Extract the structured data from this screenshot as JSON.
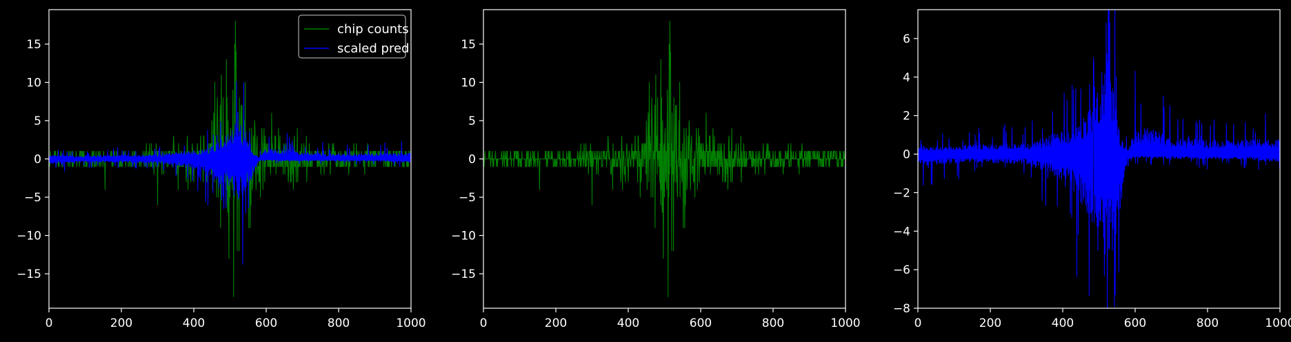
{
  "chart_data": [
    {
      "type": "line",
      "title": "",
      "xlabel": "",
      "ylabel": "",
      "xlim": [
        0,
        1000
      ],
      "ylim": [
        -19.5,
        19.5
      ],
      "xticks": [
        0,
        200,
        400,
        600,
        800,
        1000
      ],
      "yticks": [
        -15,
        -10,
        -5,
        0,
        5,
        10,
        15
      ],
      "grid": false,
      "legend": "top-right",
      "series": [
        {
          "name": "chip counts",
          "color": "#008000",
          "kind": "sparse-spikes",
          "envelope": [
            [
              0,
              1
            ],
            [
              100,
              1
            ],
            [
              200,
              1.5
            ],
            [
              320,
              3
            ],
            [
              380,
              4
            ],
            [
              430,
              6
            ],
            [
              470,
              11
            ],
            [
              490,
              13
            ],
            [
              515,
              18
            ],
            [
              530,
              12
            ],
            [
              560,
              11
            ],
            [
              580,
              7
            ],
            [
              600,
              6
            ],
            [
              640,
              5
            ],
            [
              700,
              4
            ],
            [
              800,
              2
            ],
            [
              900,
              2
            ],
            [
              1000,
              1
            ]
          ],
          "peaks": [
            [
              490,
              13
            ],
            [
              515,
              18
            ],
            [
              510,
              -18
            ],
            [
              300,
              -6
            ],
            [
              155,
              -4
            ]
          ]
        },
        {
          "name": "scaled pred",
          "color": "#0000ff",
          "kind": "two-sided-band",
          "upper": [
            [
              0,
              0.6
            ],
            [
              60,
              0.4
            ],
            [
              120,
              0.5
            ],
            [
              200,
              0.6
            ],
            [
              300,
              0.6
            ],
            [
              350,
              1.0
            ],
            [
              400,
              1.3
            ],
            [
              440,
              1.5
            ],
            [
              470,
              2.5
            ],
            [
              500,
              4.0
            ],
            [
              520,
              6.0
            ],
            [
              540,
              4.0
            ],
            [
              560,
              1.0
            ],
            [
              580,
              0.2
            ],
            [
              600,
              1.5
            ],
            [
              640,
              1.5
            ],
            [
              700,
              1.0
            ],
            [
              800,
              0.8
            ],
            [
              900,
              0.8
            ],
            [
              1000,
              0.9
            ]
          ],
          "lower": [
            [
              0,
              -0.7
            ],
            [
              60,
              -0.6
            ],
            [
              120,
              -0.5
            ],
            [
              200,
              -0.5
            ],
            [
              300,
              -0.6
            ],
            [
              350,
              -1.0
            ],
            [
              400,
              -1.5
            ],
            [
              440,
              -2.5
            ],
            [
              470,
              -3.5
            ],
            [
              500,
              -5.0
            ],
            [
              520,
              -6.5
            ],
            [
              540,
              -6.0
            ],
            [
              560,
              -3.0
            ],
            [
              580,
              -0.3
            ],
            [
              600,
              -0.2
            ],
            [
              700,
              -0.3
            ],
            [
              800,
              -0.3
            ],
            [
              900,
              -0.3
            ],
            [
              1000,
              -0.5
            ]
          ]
        }
      ],
      "legend_entries": [
        "chip counts",
        "scaled pred"
      ]
    },
    {
      "type": "line",
      "title": "",
      "xlabel": "",
      "ylabel": "",
      "xlim": [
        0,
        1000
      ],
      "ylim": [
        -19.5,
        19.5
      ],
      "xticks": [
        0,
        200,
        400,
        600,
        800,
        1000
      ],
      "yticks": [
        -15,
        -10,
        -5,
        0,
        5,
        10,
        15
      ],
      "grid": false,
      "series": [
        {
          "color": "#008000",
          "kind": "sparse-spikes",
          "envelope": [
            [
              0,
              1
            ],
            [
              100,
              1
            ],
            [
              200,
              1.5
            ],
            [
              320,
              3
            ],
            [
              380,
              4
            ],
            [
              430,
              6
            ],
            [
              470,
              11
            ],
            [
              490,
              13
            ],
            [
              515,
              18
            ],
            [
              530,
              12
            ],
            [
              560,
              11
            ],
            [
              580,
              7
            ],
            [
              600,
              6
            ],
            [
              640,
              5
            ],
            [
              700,
              4
            ],
            [
              800,
              2
            ],
            [
              900,
              2
            ],
            [
              1000,
              1
            ]
          ],
          "peaks": [
            [
              490,
              13
            ],
            [
              515,
              18
            ],
            [
              510,
              -18
            ],
            [
              300,
              -6
            ],
            [
              155,
              -4
            ]
          ]
        }
      ]
    },
    {
      "type": "line",
      "title": "",
      "xlabel": "",
      "ylabel": "",
      "xlim": [
        0,
        1000
      ],
      "ylim": [
        -8,
        7.5
      ],
      "xticks": [
        0,
        200,
        400,
        600,
        800,
        1000
      ],
      "yticks": [
        -8,
        -6,
        -4,
        -2,
        0,
        2,
        4,
        6
      ],
      "grid": false,
      "series": [
        {
          "color": "#0000ff",
          "kind": "two-sided-band",
          "upper": [
            [
              0,
              0.6
            ],
            [
              60,
              0.4
            ],
            [
              120,
              0.5
            ],
            [
              200,
              0.6
            ],
            [
              300,
              0.6
            ],
            [
              350,
              1.0
            ],
            [
              400,
              1.3
            ],
            [
              440,
              1.5
            ],
            [
              470,
              2.5
            ],
            [
              500,
              4.0
            ],
            [
              520,
              6.0
            ],
            [
              540,
              4.0
            ],
            [
              560,
              1.0
            ],
            [
              580,
              0.2
            ],
            [
              600,
              1.5
            ],
            [
              640,
              1.5
            ],
            [
              700,
              1.0
            ],
            [
              800,
              0.8
            ],
            [
              900,
              0.8
            ],
            [
              1000,
              0.9
            ]
          ],
          "lower": [
            [
              0,
              -0.7
            ],
            [
              60,
              -0.6
            ],
            [
              120,
              -0.5
            ],
            [
              200,
              -0.5
            ],
            [
              300,
              -0.6
            ],
            [
              350,
              -1.0
            ],
            [
              400,
              -1.5
            ],
            [
              440,
              -2.5
            ],
            [
              470,
              -3.5
            ],
            [
              500,
              -5.0
            ],
            [
              520,
              -6.5
            ],
            [
              540,
              -6.0
            ],
            [
              560,
              -3.0
            ],
            [
              580,
              -0.3
            ],
            [
              600,
              -0.2
            ],
            [
              700,
              -0.3
            ],
            [
              800,
              -0.3
            ],
            [
              900,
              -0.3
            ],
            [
              1000,
              -0.5
            ]
          ],
          "peaks": [
            [
              520,
              6.8
            ],
            [
              530,
              6.8
            ],
            [
              485,
              5.0
            ],
            [
              600,
              4.3
            ],
            [
              545,
              -7.3
            ],
            [
              515,
              -6.3
            ]
          ]
        }
      ]
    }
  ],
  "colors": {
    "background": "#000000",
    "axes": "#ffffff",
    "text": "#ffffff"
  }
}
